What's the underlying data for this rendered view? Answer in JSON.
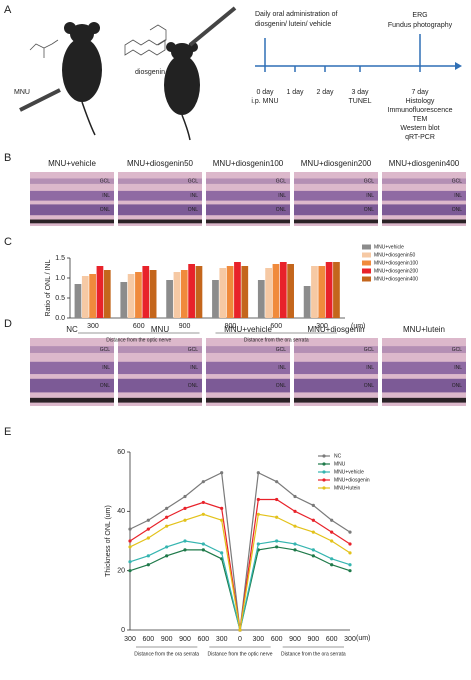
{
  "panel_a": {
    "letter": "A",
    "drug_labels": [
      "MNU",
      "diosgenin"
    ],
    "administration": [
      "Daily oral administration of",
      "diosgenin/ lutein/ vehicle"
    ],
    "endpoint_top": [
      "ERG",
      "Fundus photography"
    ],
    "timepoints": [
      {
        "day": "0 day",
        "notes": [
          "i.p. MNU"
        ]
      },
      {
        "day": "1 day",
        "notes": []
      },
      {
        "day": "2 day",
        "notes": []
      },
      {
        "day": "3 day",
        "notes": [
          "TUNEL"
        ]
      },
      {
        "day": "7 day",
        "notes": [
          "Histology",
          "Immunofluorescence",
          "TEM",
          "Western blot",
          "qRT-PCR"
        ]
      }
    ]
  },
  "panel_b": {
    "letter": "B",
    "columns": [
      "MNU+vehicle",
      "MNU+diosgenin50",
      "MNU+diosgenin100",
      "MNU+diosgenin200",
      "MNU+diosgenin400"
    ],
    "layers": [
      "GCL",
      "INL",
      "ONL"
    ]
  },
  "panel_c": {
    "letter": "C"
  },
  "panel_d": {
    "letter": "D",
    "columns": [
      "NC",
      "MNU",
      "MNU+vehicle",
      "MNU+diosgenin",
      "MNU+lutein"
    ],
    "layers": [
      "GCL",
      "INL",
      "ONL"
    ]
  },
  "panel_e": {
    "letter": "E"
  },
  "chart_data": [
    {
      "type": "bar",
      "y_label": "Ratio of ONL / INL",
      "x_unit": "(um)",
      "categories": [
        "300",
        "600",
        "900",
        "900",
        "600",
        "300"
      ],
      "groups": [
        "Distance from the optic nerve",
        "Distance from the ora serrata"
      ],
      "ylim": [
        0,
        1.5
      ],
      "yticks": [
        {
          "value": 0,
          "label": "0.0"
        },
        {
          "value": 0.5,
          "label": "0.5"
        },
        {
          "value": 1,
          "label": "1.0"
        },
        {
          "value": 1.5,
          "label": "1.5"
        }
      ],
      "series": [
        {
          "name": "MNU+vehicle",
          "color": "#8c8c8c",
          "values": [
            0.85,
            0.9,
            0.95,
            0.95,
            0.95,
            0.8
          ]
        },
        {
          "name": "MNU+diosgenin50",
          "color": "#f6c9a4",
          "values": [
            1.05,
            1.1,
            1.15,
            1.25,
            1.25,
            1.3
          ]
        },
        {
          "name": "MNU+diosgenin100",
          "color": "#f08a3c",
          "values": [
            1.1,
            1.15,
            1.2,
            1.3,
            1.35,
            1.3
          ]
        },
        {
          "name": "MNU+diosgenin200",
          "color": "#e8222a",
          "values": [
            1.3,
            1.3,
            1.35,
            1.4,
            1.4,
            1.4
          ]
        },
        {
          "name": "MNU+diosgenin400",
          "color": "#c4661c",
          "values": [
            1.2,
            1.2,
            1.3,
            1.3,
            1.35,
            1.4
          ]
        }
      ]
    },
    {
      "type": "line",
      "y_label": "Thickness of ONL (um)",
      "x_unit": "(um)",
      "categories": [
        "300",
        "600",
        "900",
        "900",
        "600",
        "300",
        "0",
        "300",
        "600",
        "900",
        "900",
        "600",
        "300"
      ],
      "groups": [
        "Distance from the ora serrata",
        "Distance from the optic nerve",
        "Distance from the ora serrata"
      ],
      "ylim": [
        0,
        60
      ],
      "yticks": [
        0,
        20,
        40,
        60
      ],
      "series": [
        {
          "name": "NC",
          "color": "#7a7a7a",
          "values": [
            34,
            37,
            41,
            45,
            50,
            53,
            0,
            53,
            50,
            45,
            42,
            37,
            33
          ]
        },
        {
          "name": "MNU",
          "color": "#1f7a4a",
          "values": [
            20,
            22,
            25,
            27,
            27,
            24,
            0,
            27,
            28,
            27,
            25,
            22,
            20
          ]
        },
        {
          "name": "MNU+vehicle",
          "color": "#35b5b0",
          "values": [
            23,
            25,
            28,
            30,
            29,
            26,
            0,
            29,
            30,
            29,
            27,
            24,
            22
          ]
        },
        {
          "name": "MNU+diosgenin",
          "color": "#e8222a",
          "values": [
            30,
            34,
            38,
            41,
            43,
            41,
            0,
            44,
            44,
            40,
            37,
            33,
            29
          ]
        },
        {
          "name": "MNU+lutein",
          "color": "#e3c21a",
          "values": [
            28,
            31,
            35,
            37,
            39,
            37,
            0,
            39,
            38,
            35,
            33,
            30,
            26
          ]
        }
      ]
    }
  ]
}
